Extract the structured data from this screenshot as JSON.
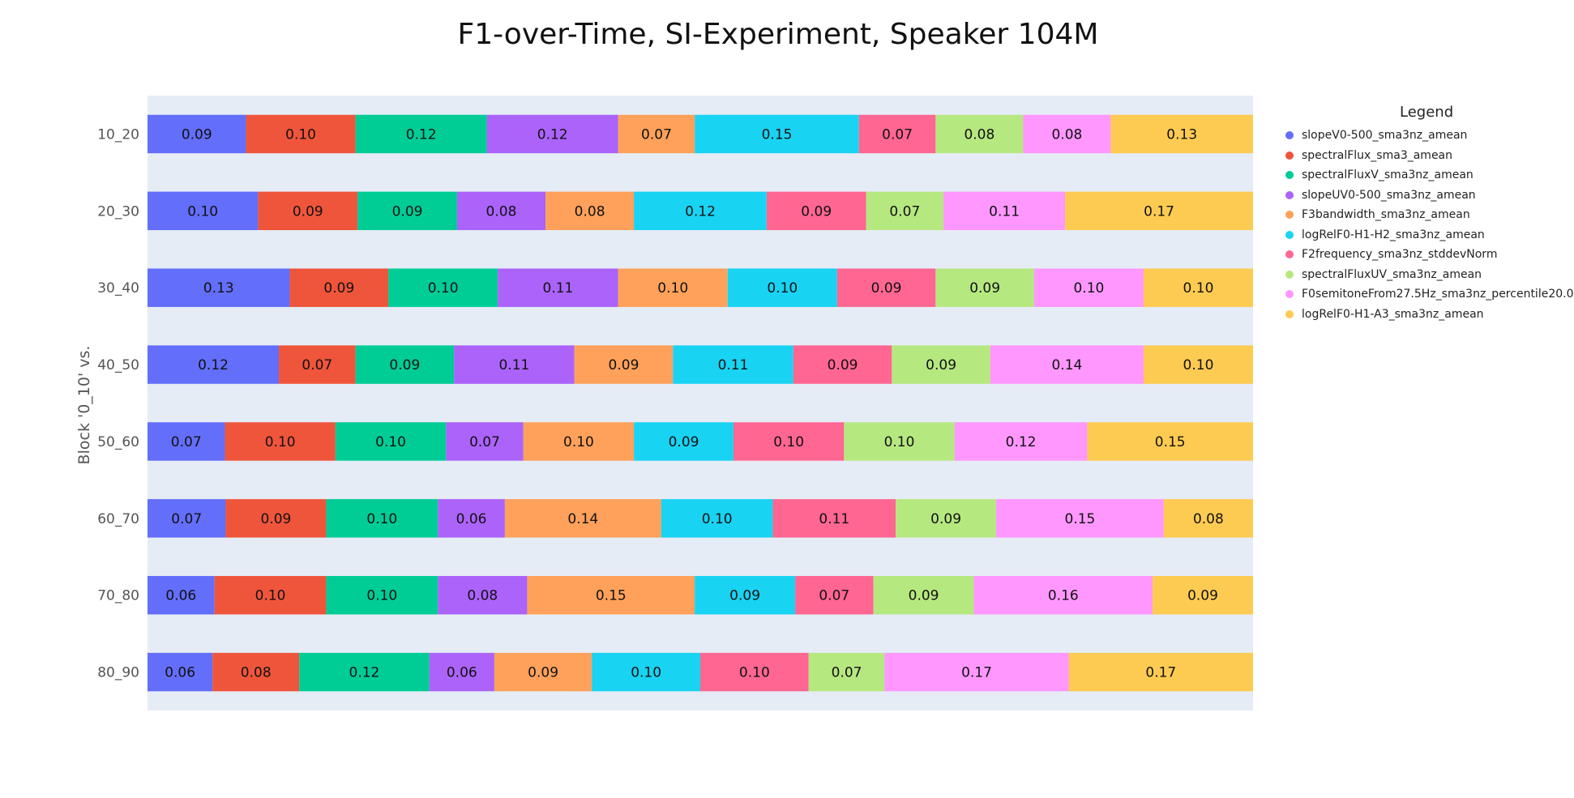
{
  "chart_data": {
    "type": "bar",
    "orientation": "horizontal",
    "stacked": true,
    "title": "F1-over-Time, SI-Experiment, Speaker 104M",
    "ylabel": "Block '0_10' vs.",
    "xlabel": "",
    "legend_title": "Legend",
    "legend_position": "right",
    "xlim": [
      0,
      1
    ],
    "plot_background": "#e5ecf6",
    "categories": [
      "10_20",
      "20_30",
      "30_40",
      "40_50",
      "50_60",
      "60_70",
      "70_80",
      "80_90"
    ],
    "series": [
      {
        "name": "slopeV0-500_sma3nz_amean",
        "color": "#636efa",
        "values": [
          0.09,
          0.1,
          0.13,
          0.12,
          0.07,
          0.07,
          0.06,
          0.06
        ]
      },
      {
        "name": "spectralFlux_sma3_amean",
        "color": "#ef553b",
        "values": [
          0.1,
          0.09,
          0.09,
          0.07,
          0.1,
          0.09,
          0.1,
          0.08
        ]
      },
      {
        "name": "spectralFluxV_sma3nz_amean",
        "color": "#00cc96",
        "values": [
          0.12,
          0.09,
          0.1,
          0.09,
          0.1,
          0.1,
          0.1,
          0.12
        ]
      },
      {
        "name": "slopeUV0-500_sma3nz_amean",
        "color": "#ab63fa",
        "values": [
          0.12,
          0.08,
          0.11,
          0.11,
          0.07,
          0.06,
          0.08,
          0.06
        ]
      },
      {
        "name": "F3bandwidth_sma3nz_amean",
        "color": "#ffa15a",
        "values": [
          0.07,
          0.08,
          0.1,
          0.09,
          0.1,
          0.14,
          0.15,
          0.09
        ]
      },
      {
        "name": "logRelF0-H1-H2_sma3nz_amean",
        "color": "#19d3f3",
        "values": [
          0.15,
          0.12,
          0.1,
          0.11,
          0.09,
          0.1,
          0.09,
          0.1
        ]
      },
      {
        "name": "F2frequency_sma3nz_stddevNorm",
        "color": "#ff6692",
        "values": [
          0.07,
          0.09,
          0.09,
          0.09,
          0.1,
          0.11,
          0.07,
          0.1
        ]
      },
      {
        "name": "spectralFluxUV_sma3nz_amean",
        "color": "#b6e880",
        "values": [
          0.08,
          0.07,
          0.09,
          0.09,
          0.1,
          0.09,
          0.09,
          0.07
        ]
      },
      {
        "name": "F0semitoneFrom27.5Hz_sma3nz_percentile20.0",
        "color": "#ff97ff",
        "values": [
          0.08,
          0.11,
          0.1,
          0.14,
          0.12,
          0.15,
          0.16,
          0.17
        ]
      },
      {
        "name": "logRelF0-H1-A3_sma3nz_amean",
        "color": "#fecb52",
        "values": [
          0.13,
          0.17,
          0.1,
          0.1,
          0.15,
          0.08,
          0.09,
          0.17
        ]
      }
    ]
  }
}
